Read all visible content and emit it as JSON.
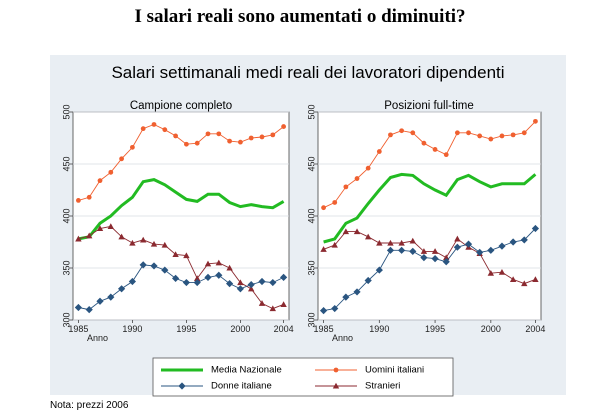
{
  "slide_title": "I salari reali sono aumentati o diminuiti?",
  "note": "Nota: prezzi 2006",
  "chart_data": {
    "type": "line",
    "title": "Salari settimanali medi reali dei lavoratori dipendenti",
    "xlabel": "Anno",
    "ylim": [
      300,
      500
    ],
    "yticks": [
      300,
      350,
      400,
      450,
      500
    ],
    "xticks": [
      1985,
      1990,
      1995,
      2000,
      2004
    ],
    "grid": true,
    "legend": "bottom",
    "x": [
      1985,
      1986,
      1987,
      1988,
      1989,
      1990,
      1991,
      1992,
      1993,
      1994,
      1995,
      1996,
      1997,
      1998,
      1999,
      2000,
      2001,
      2002,
      2003,
      2004
    ],
    "colors": {
      "media": "#22bb22",
      "uomini": "#f06030",
      "donne": "#2a5580",
      "stranieri": "#8b2a30"
    },
    "legend_entries": [
      {
        "key": "media",
        "label": "Media Nazionale",
        "marker": "none"
      },
      {
        "key": "uomini",
        "label": "Uomini italiani",
        "marker": "circle"
      },
      {
        "key": "donne",
        "label": "Donne italiane",
        "marker": "diamond"
      },
      {
        "key": "stranieri",
        "label": "Stranieri",
        "marker": "triangle"
      }
    ],
    "panels": [
      {
        "subtitle": "Campione completo",
        "series": {
          "media": [
            378,
            380,
            393,
            400,
            410,
            418,
            433,
            435,
            430,
            423,
            416,
            414,
            421,
            421,
            413,
            409,
            411,
            409,
            408,
            414
          ],
          "uomini": [
            415,
            418,
            434,
            442,
            455,
            466,
            484,
            488,
            483,
            477,
            469,
            470,
            479,
            479,
            472,
            471,
            475,
            476,
            478,
            486
          ],
          "donne": [
            312,
            310,
            318,
            322,
            330,
            337,
            353,
            352,
            348,
            340,
            336,
            336,
            341,
            343,
            335,
            330,
            334,
            337,
            336,
            341
          ],
          "stranieri": [
            378,
            381,
            388,
            390,
            380,
            374,
            377,
            373,
            372,
            363,
            362,
            340,
            354,
            355,
            350,
            336,
            330,
            316,
            311,
            315
          ]
        }
      },
      {
        "subtitle": "Posizioni full-time",
        "series": {
          "media": [
            375,
            378,
            393,
            398,
            412,
            425,
            437,
            440,
            439,
            431,
            425,
            420,
            435,
            439,
            433,
            428,
            431,
            431,
            431,
            440
          ],
          "uomini": [
            408,
            413,
            428,
            436,
            446,
            462,
            478,
            482,
            480,
            470,
            464,
            459,
            480,
            480,
            477,
            474,
            477,
            478,
            480,
            491
          ],
          "donne": [
            309,
            311,
            322,
            327,
            338,
            348,
            367,
            367,
            366,
            360,
            359,
            356,
            370,
            373,
            365,
            367,
            371,
            375,
            377,
            388
          ],
          "stranieri": [
            368,
            372,
            385,
            385,
            380,
            374,
            374,
            374,
            376,
            366,
            366,
            360,
            378,
            370,
            364,
            345,
            346,
            339,
            335,
            339
          ]
        }
      }
    ]
  }
}
